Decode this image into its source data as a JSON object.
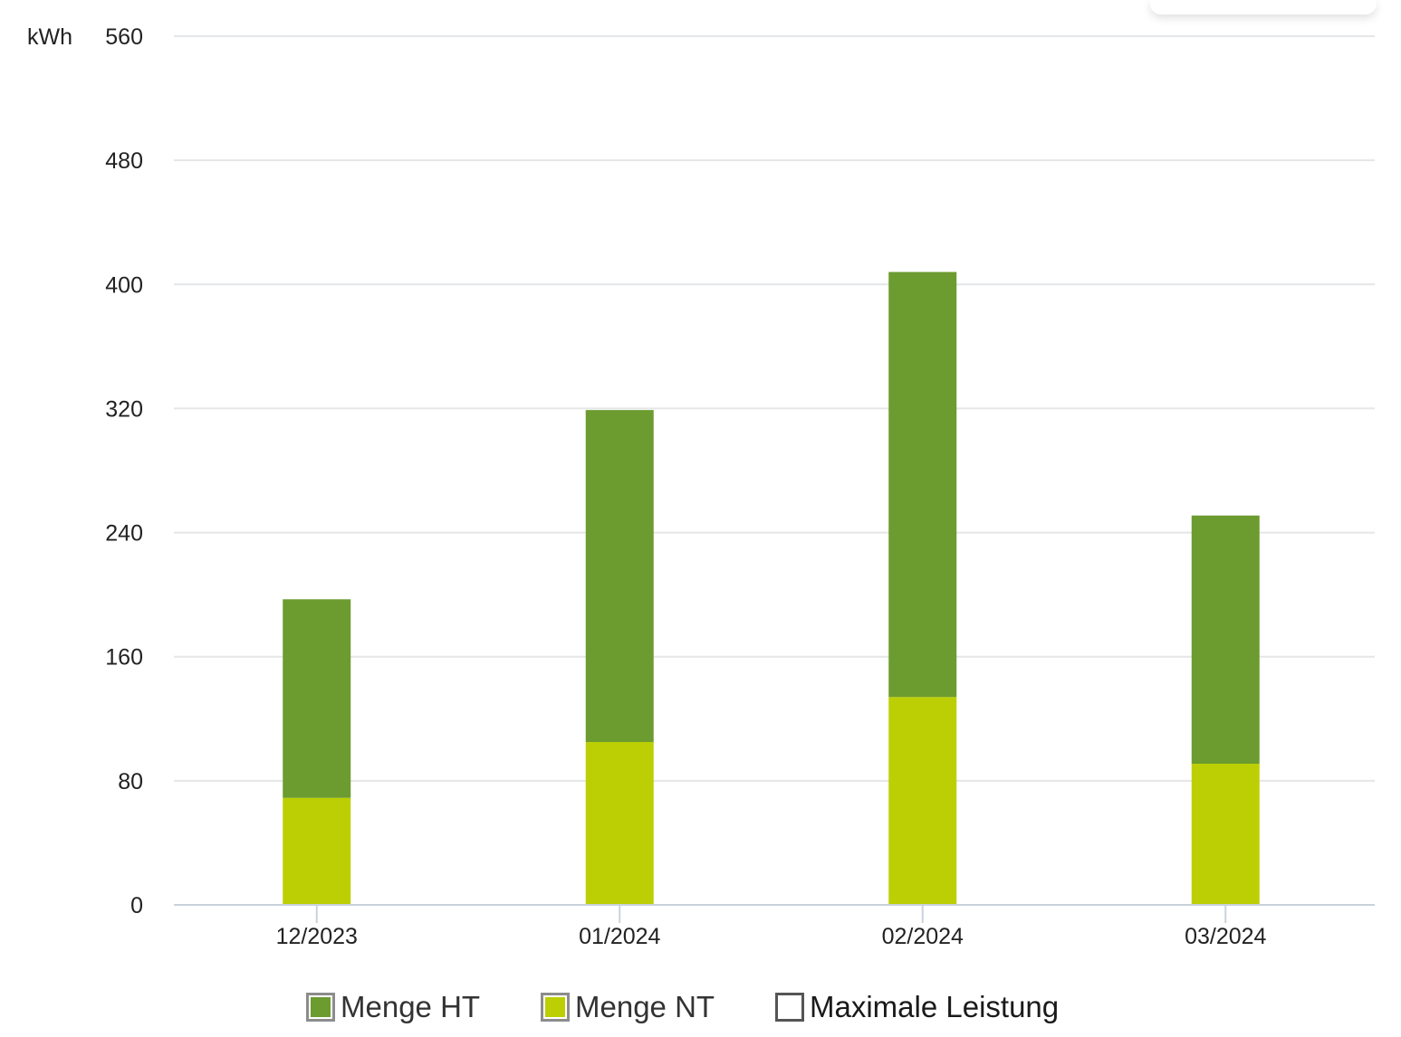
{
  "chart_data": {
    "type": "bar",
    "stacked": true,
    "ylabel": "kWh",
    "ylim": [
      0,
      560
    ],
    "yticks": [
      "0",
      "80",
      "160",
      "240",
      "320",
      "400",
      "480",
      "560"
    ],
    "categories": [
      "12/2023",
      "01/2024",
      "02/2024",
      "03/2024"
    ],
    "series": [
      {
        "name": "Menge NT",
        "color": "#bccf04",
        "values": [
          69,
          105,
          134,
          91
        ]
      },
      {
        "name": "Menge HT",
        "color": "#6c9b30",
        "values": [
          128,
          214,
          274,
          160
        ]
      }
    ],
    "grid": true,
    "legend_position": "bottom"
  },
  "legend": {
    "items": [
      {
        "label": "Menge HT",
        "color": "#6c9b30"
      },
      {
        "label": "Menge NT",
        "color": "#bccf04"
      },
      {
        "label": "Maximale Leistung",
        "color": ""
      }
    ]
  }
}
